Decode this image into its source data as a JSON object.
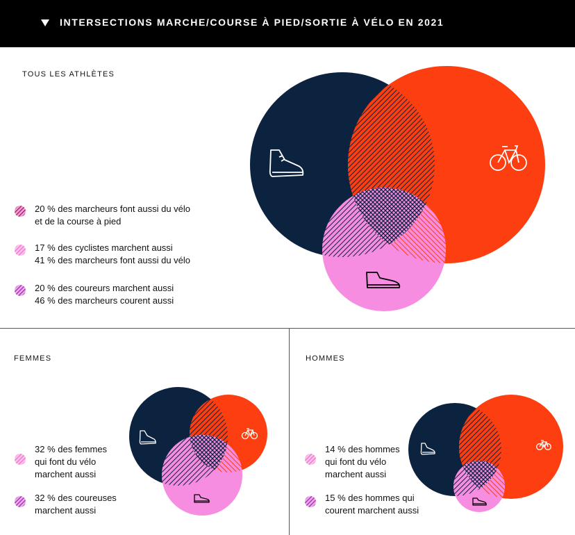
{
  "header": {
    "title": "INTERSECTIONS MARCHE/COURSE À PIED/SORTIE À VÉLO EN 2021"
  },
  "colors": {
    "navy": "#0c2340",
    "orange": "#fc3e10",
    "pink": "#f78de0",
    "legend_overlap_dark": "#b8206a",
    "legend_pink": "#f57fd0",
    "legend_purple": "#a43cc4"
  },
  "icons": [
    "shoe-icon",
    "bike-icon",
    "walking-shoe-icon"
  ],
  "all_athletes": {
    "label": "TOUS LES ATHLÈTES",
    "legend": [
      {
        "line1": "20 % des marcheurs font aussi du vélo",
        "line2": "et de la course à pied"
      },
      {
        "line1": "17 % des cyclistes marchent aussi",
        "line2": "41 % des marcheurs font aussi du vélo"
      },
      {
        "line1": "20 % des coureurs marchent aussi",
        "line2": "46 % des marcheurs courent aussi"
      }
    ]
  },
  "women": {
    "label": "FEMMES",
    "legend": [
      {
        "line1": "32 % des femmes",
        "line2": "qui font du vélo",
        "line3": "marchent aussi"
      },
      {
        "line1": "32 % des coureuses",
        "line2": "marchent aussi"
      }
    ]
  },
  "men": {
    "label": "HOMMES",
    "legend": [
      {
        "line1": "14 % des hommes",
        "line2": "qui font du vélo",
        "line3": "marchent aussi"
      },
      {
        "line1": "15 % des hommes qui",
        "line2": "courent marchent aussi"
      }
    ]
  }
}
